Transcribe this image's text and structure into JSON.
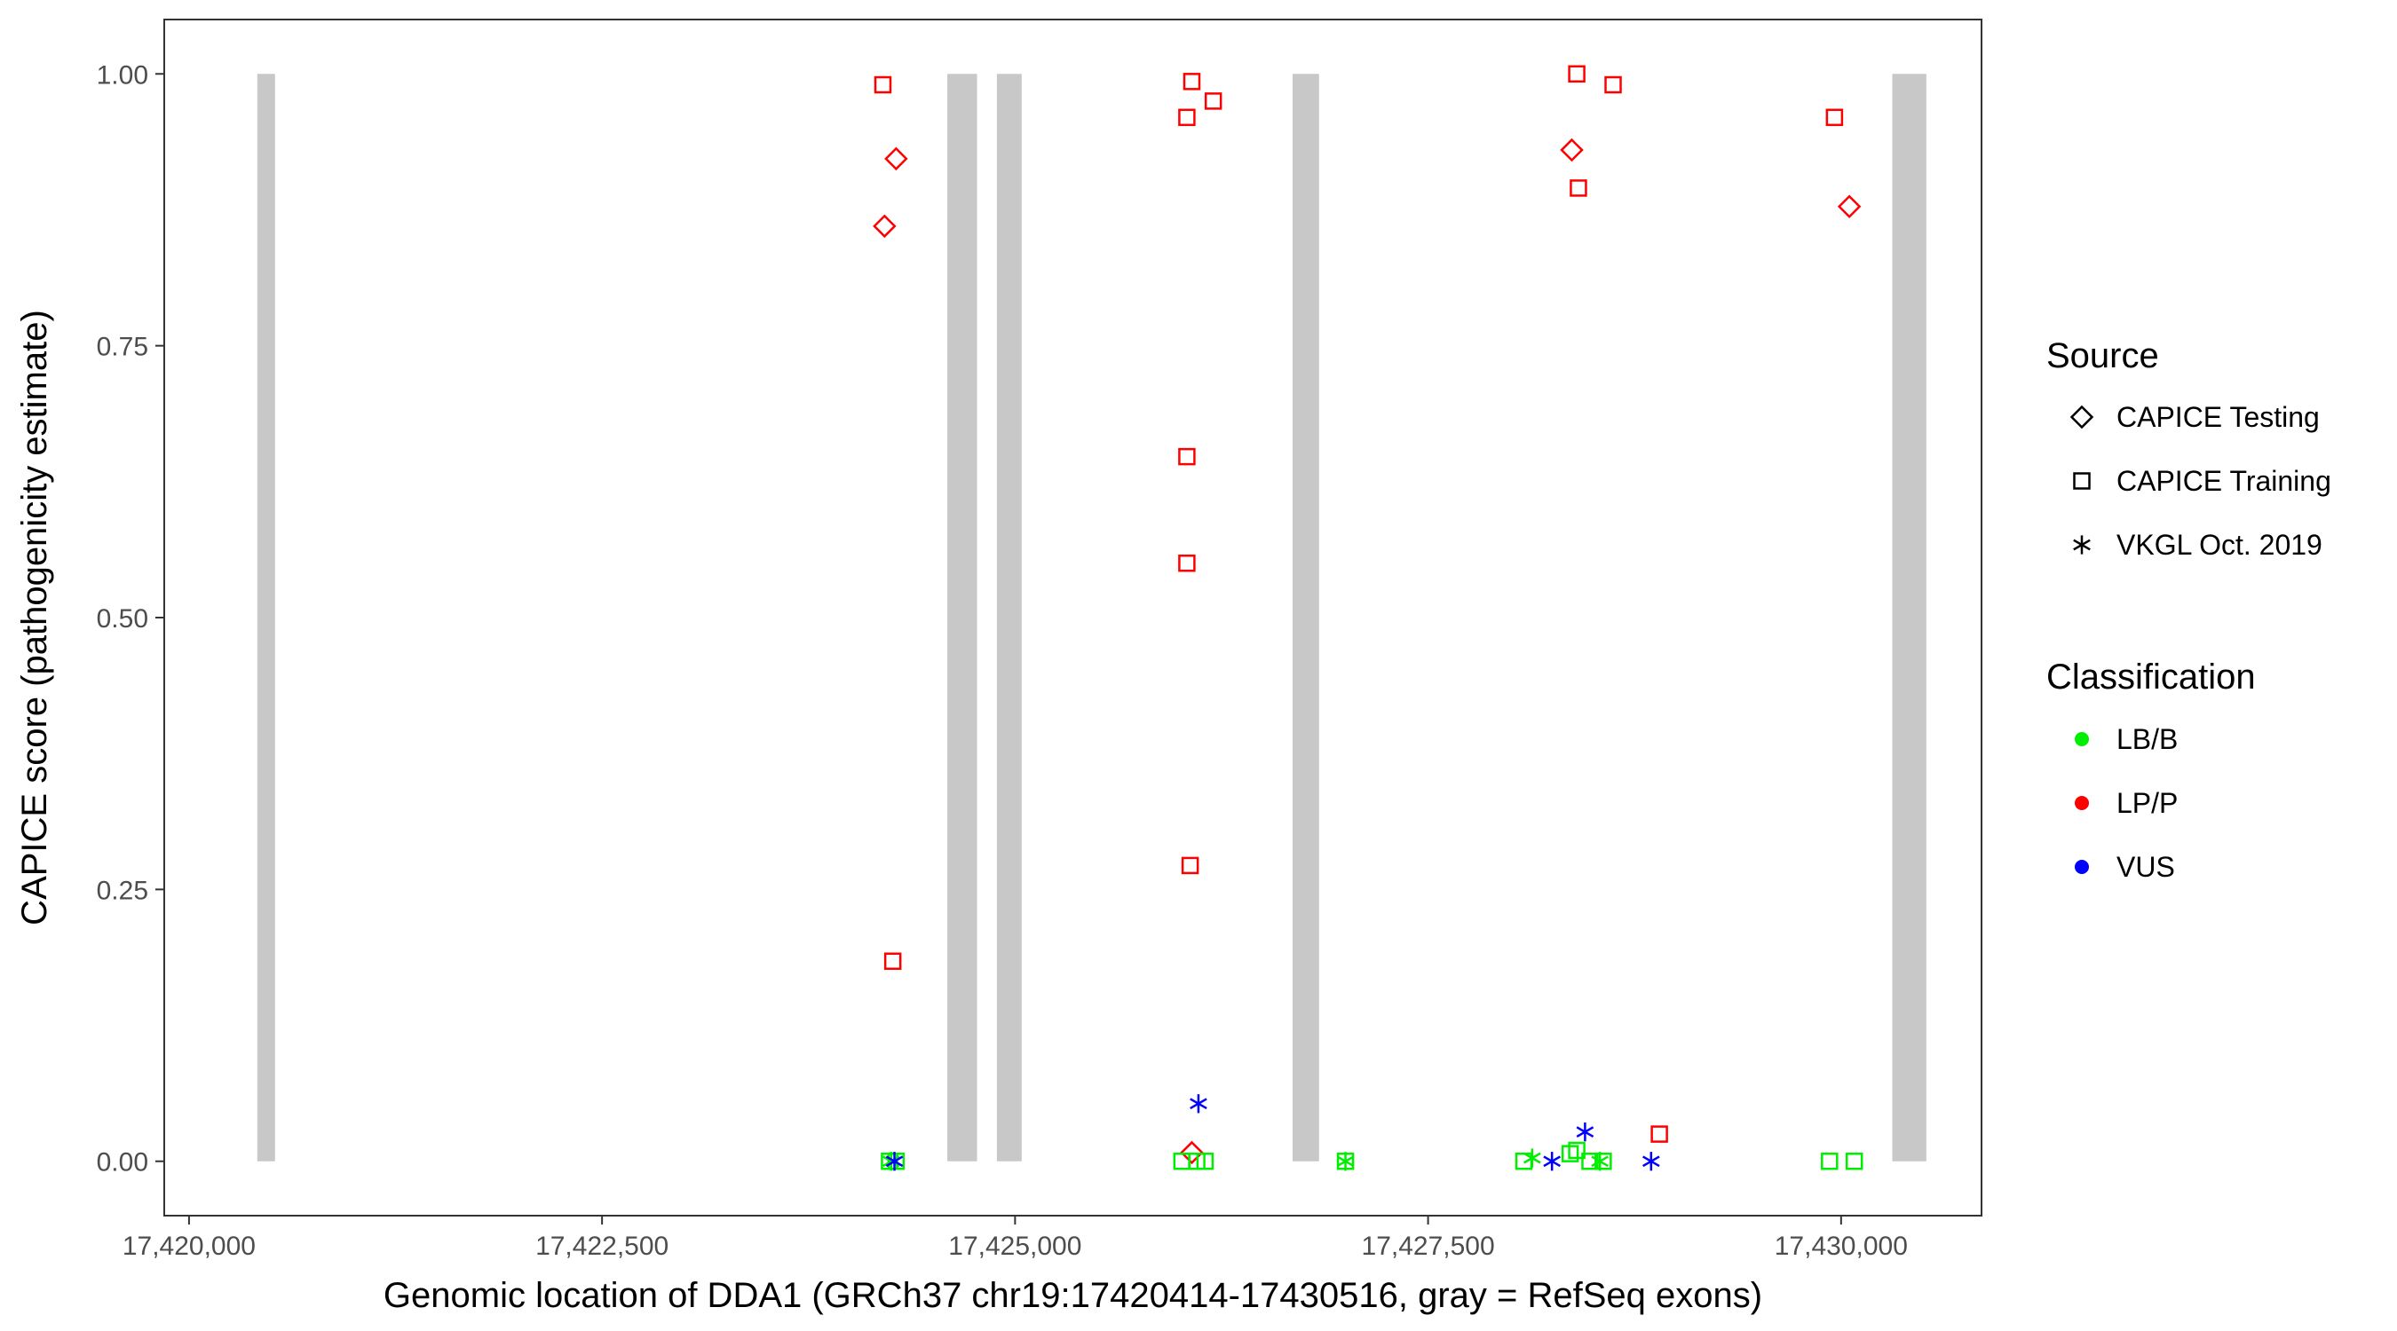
{
  "chart_data": {
    "type": "scatter",
    "xlabel": "Genomic location of DDA1 (GRCh37 chr19:17420414-17430516, gray = RefSeq exons)",
    "ylabel": "CAPICE score (pathogenicity estimate)",
    "xlim": [
      17419850,
      17430850
    ],
    "ylim": [
      -0.05,
      1.05
    ],
    "x_ticks": [
      17420000,
      17422500,
      17425000,
      17427500,
      17430000
    ],
    "x_tick_labels": [
      "17,420,000",
      "17,422,500",
      "17,425,000",
      "17,427,500",
      "17,430,000"
    ],
    "y_ticks": [
      0,
      0.25,
      0.5,
      0.75,
      1.0
    ],
    "y_tick_labels": [
      "0.00",
      "0.25",
      "0.50",
      "0.75",
      "1.00"
    ],
    "grid": false,
    "exons": [
      {
        "start": 17420414,
        "end": 17420520
      },
      {
        "start": 17424590,
        "end": 17424770
      },
      {
        "start": 17424890,
        "end": 17425040
      },
      {
        "start": 17426680,
        "end": 17426840
      },
      {
        "start": 17430310,
        "end": 17430516
      }
    ],
    "exon_color": "#c8c8c8",
    "legend_placement": "right",
    "legend": {
      "source": {
        "title": "Source",
        "items": [
          {
            "label": "CAPICE Testing",
            "shape": "diamond"
          },
          {
            "label": "CAPICE Training",
            "shape": "square"
          },
          {
            "label": "VKGL Oct. 2019",
            "shape": "asterisk"
          }
        ]
      },
      "classification": {
        "title": "Classification",
        "items": [
          {
            "label": "LB/B",
            "color": "#00ee00"
          },
          {
            "label": "LP/P",
            "color": "#ff0000"
          },
          {
            "label": "VUS",
            "color": "#0000ff"
          }
        ]
      }
    },
    "points": [
      {
        "x": 17424200,
        "y": 0.99,
        "source": "CAPICE Training",
        "cls": "LP/P"
      },
      {
        "x": 17424280,
        "y": 0.922,
        "source": "CAPICE Testing",
        "cls": "LP/P"
      },
      {
        "x": 17424210,
        "y": 0.86,
        "source": "CAPICE Testing",
        "cls": "LP/P"
      },
      {
        "x": 17424260,
        "y": 0.184,
        "source": "CAPICE Training",
        "cls": "LP/P"
      },
      {
        "x": 17424240,
        "y": 0.0,
        "source": "CAPICE Training",
        "cls": "LB/B"
      },
      {
        "x": 17424280,
        "y": 0.0,
        "source": "CAPICE Training",
        "cls": "LB/B"
      },
      {
        "x": 17424250,
        "y": 0.0,
        "source": "VKGL Oct. 2019",
        "cls": "LB/B"
      },
      {
        "x": 17424270,
        "y": 0.0,
        "source": "VKGL Oct. 2019",
        "cls": "VUS"
      },
      {
        "x": 17426070,
        "y": 0.993,
        "source": "CAPICE Training",
        "cls": "LP/P"
      },
      {
        "x": 17426040,
        "y": 0.96,
        "source": "CAPICE Training",
        "cls": "LP/P"
      },
      {
        "x": 17426200,
        "y": 0.975,
        "source": "CAPICE Training",
        "cls": "LP/P"
      },
      {
        "x": 17426040,
        "y": 0.648,
        "source": "CAPICE Training",
        "cls": "LP/P"
      },
      {
        "x": 17426040,
        "y": 0.55,
        "source": "CAPICE Training",
        "cls": "LP/P"
      },
      {
        "x": 17426060,
        "y": 0.272,
        "source": "CAPICE Training",
        "cls": "LP/P"
      },
      {
        "x": 17426110,
        "y": 0.053,
        "source": "VKGL Oct. 2019",
        "cls": "VUS"
      },
      {
        "x": 17426070,
        "y": 0.008,
        "source": "CAPICE Testing",
        "cls": "LP/P"
      },
      {
        "x": 17426010,
        "y": 0.0,
        "source": "CAPICE Training",
        "cls": "LB/B"
      },
      {
        "x": 17426150,
        "y": 0.0,
        "source": "CAPICE Training",
        "cls": "LB/B"
      },
      {
        "x": 17426100,
        "y": 0.0,
        "source": "CAPICE Training",
        "cls": "LB/B"
      },
      {
        "x": 17427000,
        "y": 0.0,
        "source": "CAPICE Training",
        "cls": "LB/B"
      },
      {
        "x": 17427000,
        "y": 0.0,
        "source": "VKGL Oct. 2019",
        "cls": "LB/B"
      },
      {
        "x": 17428400,
        "y": 1.0,
        "source": "CAPICE Training",
        "cls": "LP/P"
      },
      {
        "x": 17428620,
        "y": 0.99,
        "source": "CAPICE Training",
        "cls": "LP/P"
      },
      {
        "x": 17428370,
        "y": 0.93,
        "source": "CAPICE Testing",
        "cls": "LP/P"
      },
      {
        "x": 17428410,
        "y": 0.895,
        "source": "CAPICE Training",
        "cls": "LP/P"
      },
      {
        "x": 17428450,
        "y": 0.027,
        "source": "VKGL Oct. 2019",
        "cls": "VUS"
      },
      {
        "x": 17428900,
        "y": 0.025,
        "source": "CAPICE Training",
        "cls": "LP/P"
      },
      {
        "x": 17428080,
        "y": 0.0,
        "source": "CAPICE Training",
        "cls": "LB/B"
      },
      {
        "x": 17428130,
        "y": 0.003,
        "source": "VKGL Oct. 2019",
        "cls": "LB/B"
      },
      {
        "x": 17428250,
        "y": 0.0,
        "source": "VKGL Oct. 2019",
        "cls": "VUS"
      },
      {
        "x": 17428360,
        "y": 0.007,
        "source": "CAPICE Training",
        "cls": "LB/B"
      },
      {
        "x": 17428400,
        "y": 0.01,
        "source": "CAPICE Training",
        "cls": "LB/B"
      },
      {
        "x": 17428480,
        "y": 0.0,
        "source": "CAPICE Training",
        "cls": "LB/B"
      },
      {
        "x": 17428540,
        "y": 0.0,
        "source": "VKGL Oct. 2019",
        "cls": "LB/B"
      },
      {
        "x": 17428560,
        "y": 0.0,
        "source": "CAPICE Training",
        "cls": "LB/B"
      },
      {
        "x": 17428850,
        "y": 0.0,
        "source": "VKGL Oct. 2019",
        "cls": "VUS"
      },
      {
        "x": 17429960,
        "y": 0.96,
        "source": "CAPICE Training",
        "cls": "LP/P"
      },
      {
        "x": 17430050,
        "y": 0.878,
        "source": "CAPICE Testing",
        "cls": "LP/P"
      },
      {
        "x": 17429930,
        "y": 0.0,
        "source": "CAPICE Training",
        "cls": "LB/B"
      },
      {
        "x": 17430080,
        "y": 0.0,
        "source": "CAPICE Training",
        "cls": "LB/B"
      }
    ]
  }
}
